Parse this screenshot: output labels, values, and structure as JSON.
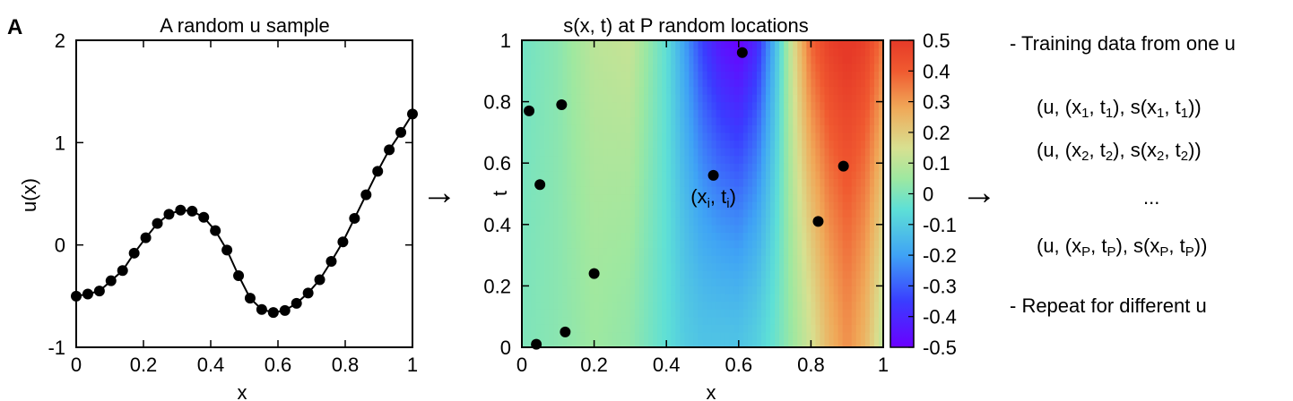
{
  "panel_label": "A",
  "arrow_glyph": "→",
  "chart_data": [
    {
      "type": "line",
      "title": "A random u sample",
      "xlabel": "x",
      "ylabel": "u(x)",
      "xlim": [
        0,
        1
      ],
      "ylim": [
        -1,
        2
      ],
      "x_ticks": [
        0,
        0.2,
        0.4,
        0.6,
        0.8,
        1
      ],
      "x_tick_labels": [
        "0",
        "0.2",
        "0.4",
        "0.6",
        "0.8",
        "1"
      ],
      "y_ticks": [
        -1,
        0,
        1,
        2
      ],
      "y_tick_labels": [
        "-1",
        "0",
        "1",
        "2"
      ],
      "grid": false,
      "line_color": "#000000",
      "marker": "filled-circle",
      "x": [
        0,
        0.0345,
        0.069,
        0.1034,
        0.1379,
        0.1724,
        0.2069,
        0.2414,
        0.2759,
        0.3103,
        0.3448,
        0.3793,
        0.4138,
        0.4483,
        0.4828,
        0.5172,
        0.5517,
        0.5862,
        0.6207,
        0.6552,
        0.6897,
        0.7241,
        0.7586,
        0.7931,
        0.8276,
        0.8621,
        0.8966,
        0.931,
        0.9655,
        1.0
      ],
      "y": [
        -0.5,
        -0.48,
        -0.45,
        -0.35,
        -0.25,
        -0.08,
        0.07,
        0.21,
        0.3,
        0.34,
        0.33,
        0.27,
        0.14,
        -0.05,
        -0.3,
        -0.52,
        -0.63,
        -0.66,
        -0.64,
        -0.57,
        -0.47,
        -0.34,
        -0.16,
        0.03,
        0.26,
        0.49,
        0.72,
        0.93,
        1.1,
        1.28
      ]
    },
    {
      "type": "heatmap",
      "title": "s(x, t) at P random locations",
      "xlabel": "x",
      "ylabel": "t",
      "xlim": [
        0,
        1
      ],
      "ylim": [
        0,
        1
      ],
      "x_ticks": [
        0,
        0.2,
        0.4,
        0.6,
        0.8,
        1
      ],
      "x_tick_labels": [
        "0",
        "0.2",
        "0.4",
        "0.6",
        "0.8",
        "1"
      ],
      "y_ticks": [
        0,
        0.2,
        0.4,
        0.6,
        0.8,
        1
      ],
      "y_tick_labels": [
        "0",
        "0.2",
        "0.4",
        "0.6",
        "0.8",
        "1"
      ],
      "colorbar": {
        "range": [
          -0.5,
          0.5
        ],
        "ticks": [
          0.5,
          0.4,
          0.3,
          0.2,
          0.1,
          0,
          -0.1,
          -0.2,
          -0.3,
          -0.4,
          -0.5
        ],
        "tick_labels": [
          "0.5",
          "0.4",
          "0.3",
          "0.2",
          "0.1",
          "0",
          "-0.1",
          "-0.2",
          "-0.3",
          "-0.4",
          "-0.5"
        ],
        "colormap": "rainbow"
      },
      "field_profile": {
        "x": [
          0,
          0.1,
          0.2,
          0.3,
          0.4,
          0.45,
          0.5,
          0.55,
          0.6,
          0.65,
          0.7,
          0.75,
          0.8,
          0.85,
          0.9,
          0.95,
          1.0
        ],
        "s_at_t0": [
          0.0,
          0.02,
          0.05,
          0.03,
          -0.05,
          -0.1,
          -0.12,
          -0.12,
          -0.12,
          -0.09,
          -0.03,
          0.05,
          0.14,
          0.25,
          0.32,
          0.25,
          0.1
        ],
        "s_at_t1": [
          -0.02,
          0.02,
          0.1,
          0.12,
          -0.05,
          -0.2,
          -0.35,
          -0.45,
          -0.5,
          -0.4,
          -0.15,
          0.15,
          0.38,
          0.48,
          0.52,
          0.48,
          0.35
        ]
      },
      "points": {
        "x": [
          0.02,
          0.11,
          0.05,
          0.61,
          0.53,
          0.89,
          0.82,
          0.2,
          0.12,
          0.04
        ],
        "t": [
          0.77,
          0.79,
          0.53,
          0.96,
          0.56,
          0.59,
          0.41,
          0.24,
          0.05,
          0.01
        ],
        "marker_color": "#000000"
      },
      "annotation": {
        "x": 0.53,
        "t": 0.47,
        "prefix": "(x",
        "sub1": "i",
        "mid": ", t",
        "sub2": "i",
        "suffix": ")"
      }
    }
  ],
  "right_panel": {
    "heading": "- Training data from one u",
    "line1": {
      "a": "(u, (x",
      "s1": "1",
      "b": ", t",
      "s2": "1",
      "c": "), s(x",
      "s3": "1",
      "d": ", t",
      "s4": "1",
      "e": "))"
    },
    "line2": {
      "a": "(u, (x",
      "s1": "2",
      "b": ", t",
      "s2": "2",
      "c": "), s(x",
      "s3": "2",
      "d": ", t",
      "s4": "2",
      "e": "))"
    },
    "ellipsis": "...",
    "lineP": {
      "a": "(u, (x",
      "s1": "P",
      "b": ", t",
      "s2": "P",
      "c": "), s(x",
      "s3": "P",
      "d": ", t",
      "s4": "P",
      "e": "))"
    },
    "footer": "- Repeat for different u"
  }
}
